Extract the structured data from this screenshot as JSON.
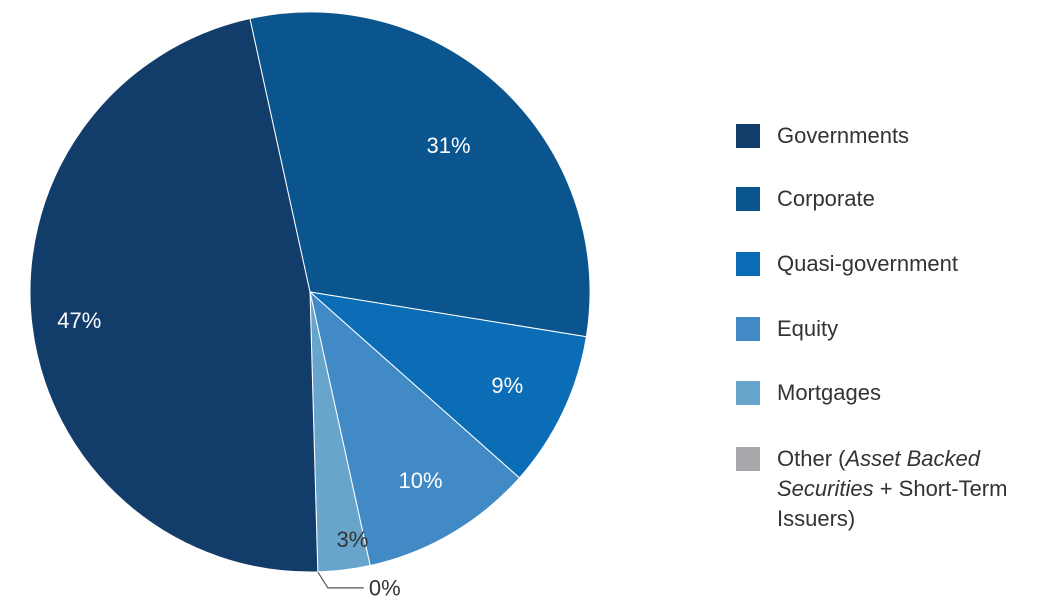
{
  "chart_data": {
    "type": "pie",
    "title": "",
    "slices": [
      {
        "name": "Corporate",
        "value": 31,
        "label": "31%",
        "color": "#0a558e"
      },
      {
        "name": "Quasi-government",
        "value": 9,
        "label": "9%",
        "color": "#0b6db6"
      },
      {
        "name": "Equity",
        "value": 10,
        "label": "10%",
        "color": "#428ac5"
      },
      {
        "name": "Mortgages",
        "value": 3,
        "label": "3%",
        "color": "#67a5cc"
      },
      {
        "name": "Other",
        "value": 0,
        "label": "0%",
        "color": "#a7a9ac"
      },
      {
        "name": "Governments",
        "value": 47,
        "label": "47%",
        "color": "#123d6b"
      }
    ],
    "legend_position": "right",
    "legend": [
      {
        "label": "Governments",
        "color": "#123d6b"
      },
      {
        "label": "Corporate",
        "color": "#0a558e"
      },
      {
        "label": "Quasi-government",
        "color": "#0b6db6"
      },
      {
        "label": "Equity",
        "color": "#428ac5"
      },
      {
        "label": "Mortgages",
        "color": "#67a5cc"
      },
      {
        "label_prefix": "Other (",
        "label_italic": "Asset Backed Securities",
        "label_suffix": " + Short-Term Issuers)",
        "color": "#a7a9ac"
      }
    ]
  }
}
